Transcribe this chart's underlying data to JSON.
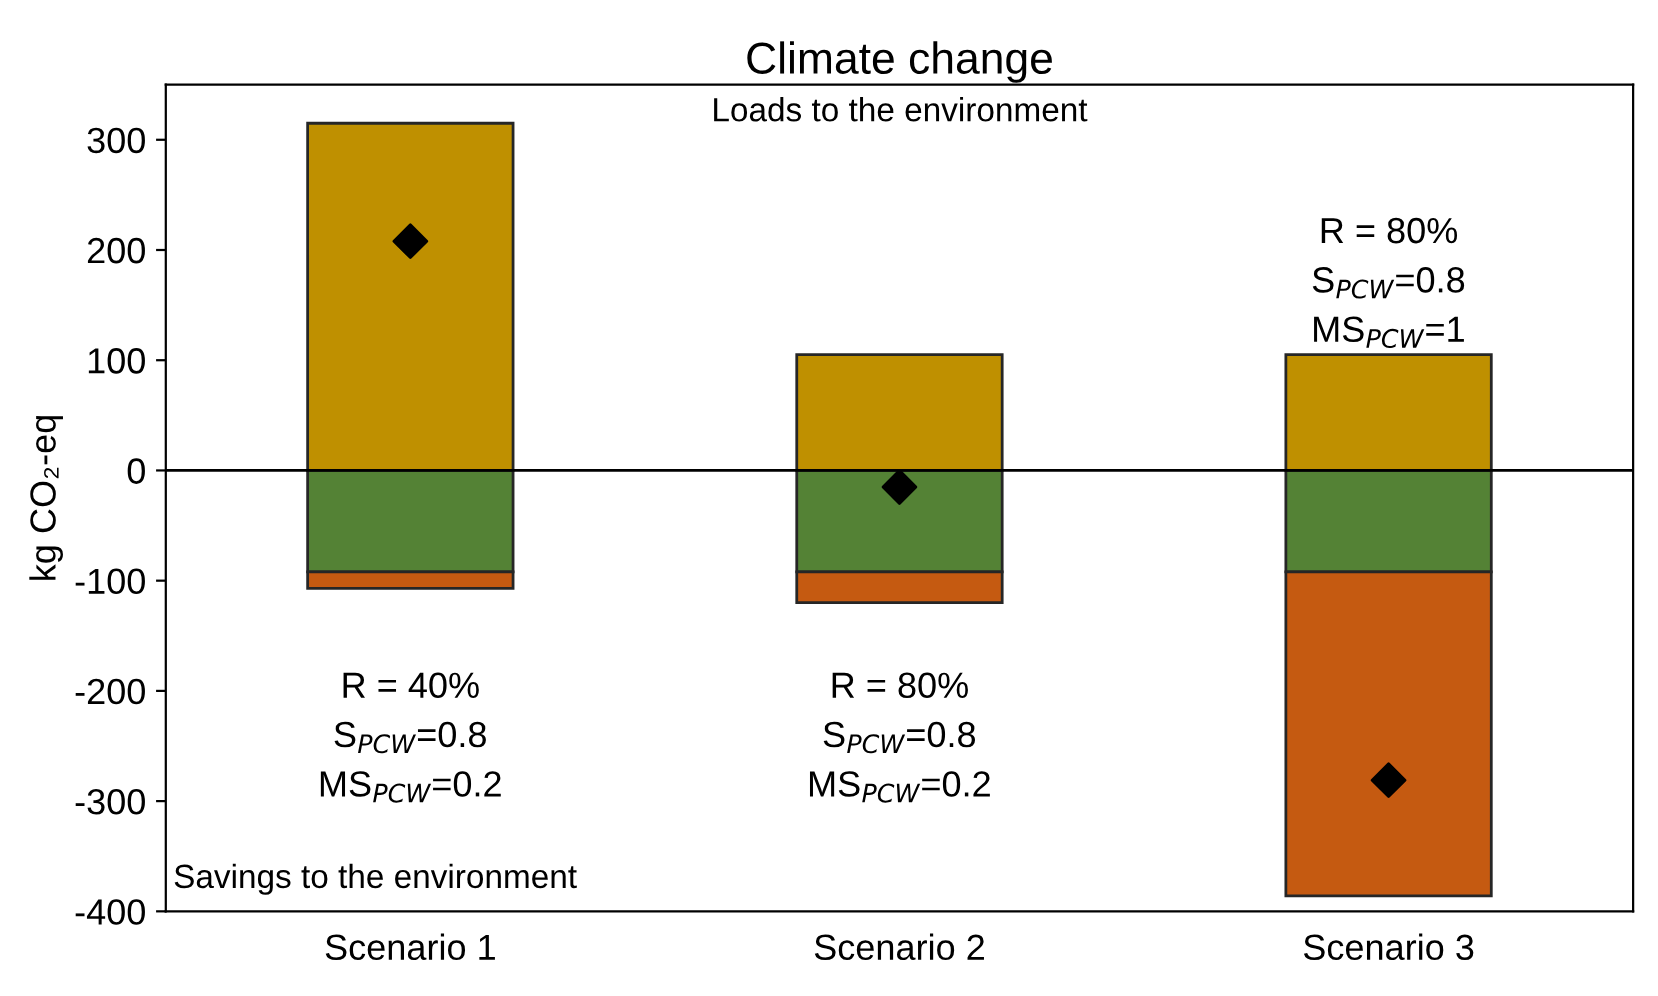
{
  "chart_data": {
    "type": "bar",
    "title": "Climate change",
    "ylabel": "kg CO₂-eq",
    "stacked": true,
    "categories": [
      "Scenario 1",
      "Scenario 2",
      "Scenario 3"
    ],
    "series": [
      {
        "color": "#bf9000",
        "values": [
          315,
          105,
          105
        ]
      },
      {
        "color": "#548235",
        "values": [
          -92,
          -92,
          -92
        ]
      },
      {
        "color": "#c55a11",
        "values": [
          -15,
          -28,
          -294
        ]
      },
      {
        "type": "scatter",
        "color": "#000000",
        "marker": "diamond",
        "x": [
          "Scenario 1",
          "Scenario 2",
          "Scenario 3"
        ],
        "values": [
          208,
          -15,
          -281
        ]
      }
    ],
    "ylim": [
      -400,
      350
    ],
    "yticks": [
      -400,
      -300,
      -200,
      -100,
      0,
      100,
      200,
      300
    ],
    "grid": false,
    "legend": false,
    "ref_lines": [
      {
        "axis": "y",
        "value": 0,
        "label": null,
        "color": "#000000"
      }
    ],
    "annotations": [
      "Loads to the environment",
      "Savings to the environment",
      "R = 40%\nS$_{PCW}$=0.8\nMS$_{PCW}$=0.2",
      "R = 80%\nS$_{PCW}$=0.8\nMS$_{PCW}$=0.2",
      "R = 80%\nS$_{PCW}$=0.8\nMS$_{PCW}$=1"
    ]
  }
}
